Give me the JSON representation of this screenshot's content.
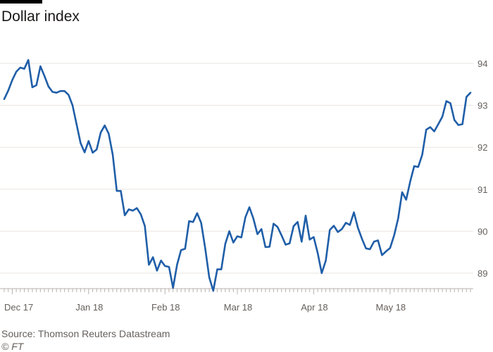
{
  "header": {
    "title": "Dollar index"
  },
  "footer": {
    "source": "Source: Thomson Reuters Datastream",
    "credit": "© FT"
  },
  "colors": {
    "line": "#1f5ea8",
    "grid": "#e9e4df",
    "axis": "#b8b2ad",
    "text": "#66605c"
  },
  "chart_data": {
    "type": "line",
    "title": "Dollar index",
    "xlabel": "",
    "ylabel": "",
    "ylim": [
      88.6,
      94.4
    ],
    "y_ticks": [
      89,
      90,
      91,
      92,
      93,
      94
    ],
    "y_tick_labels": [
      "89",
      "90",
      "91",
      "92",
      "93",
      "94"
    ],
    "x_tick_labels": [
      "Dec 17",
      "Jan 18",
      "Feb 18",
      "Mar 18",
      "Apr 18",
      "May 18"
    ],
    "x_tick_index": [
      2,
      21,
      40,
      58,
      77,
      96
    ],
    "grid": true,
    "series": [
      {
        "values": [
          93.15,
          93.35,
          93.6,
          93.8,
          93.9,
          93.87,
          94.08,
          93.43,
          93.48,
          93.93,
          93.7,
          93.45,
          93.32,
          93.3,
          93.34,
          93.34,
          93.25,
          93.0,
          92.55,
          92.1,
          91.88,
          92.15,
          91.87,
          91.95,
          92.35,
          92.52,
          92.32,
          91.82,
          90.96,
          90.96,
          90.38,
          90.52,
          90.49,
          90.55,
          90.4,
          90.12,
          89.2,
          89.38,
          89.06,
          89.3,
          89.17,
          89.15,
          88.65,
          89.2,
          89.55,
          89.58,
          90.24,
          90.22,
          90.43,
          90.2,
          89.6,
          88.9,
          88.58,
          89.09,
          89.09,
          89.7,
          90.0,
          89.73,
          89.88,
          89.85,
          90.33,
          90.57,
          90.3,
          89.93,
          90.05,
          89.62,
          89.63,
          90.18,
          90.1,
          89.9,
          89.68,
          89.71,
          90.12,
          90.22,
          89.75,
          90.37,
          89.8,
          89.86,
          89.48,
          89.0,
          89.3,
          90.03,
          90.13,
          89.98,
          90.05,
          90.2,
          90.15,
          90.45,
          90.08,
          89.82,
          89.59,
          89.57,
          89.75,
          89.78,
          89.43,
          89.52,
          89.6,
          89.9,
          90.3,
          90.93,
          90.75,
          91.18,
          91.55,
          91.53,
          91.82,
          92.42,
          92.48,
          92.38,
          92.55,
          92.73,
          93.1,
          93.05,
          92.65,
          92.53,
          92.55,
          93.2,
          93.3
        ]
      }
    ]
  }
}
